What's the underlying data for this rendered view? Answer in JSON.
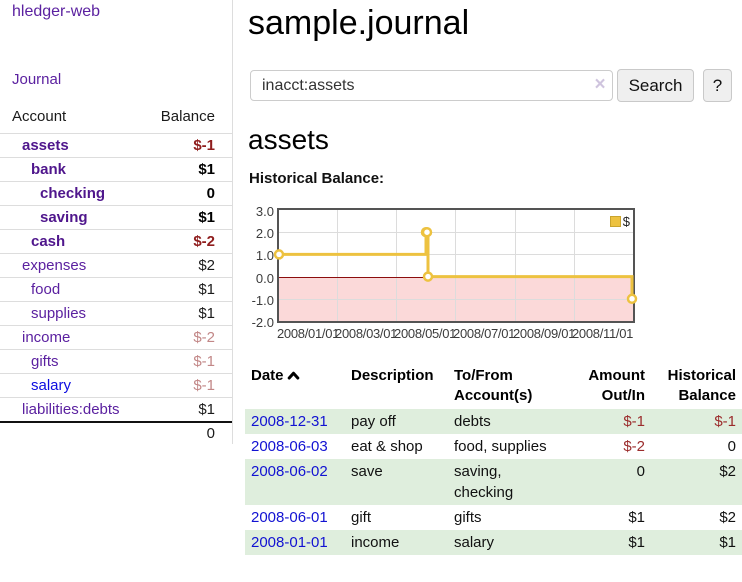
{
  "sidebar": {
    "brand": "hledger-web",
    "nav": {
      "journal": "Journal"
    },
    "accounts_header": {
      "account": "Account",
      "balance": "Balance"
    },
    "accounts": [
      {
        "name": "assets",
        "balance": "$-1"
      },
      {
        "name": "bank",
        "balance": "$1"
      },
      {
        "name": "checking",
        "balance": "0"
      },
      {
        "name": "saving",
        "balance": "$1"
      },
      {
        "name": "cash",
        "balance": "$-2"
      },
      {
        "name": "expenses",
        "balance": "$2"
      },
      {
        "name": "food",
        "balance": "$1"
      },
      {
        "name": "supplies",
        "balance": "$1"
      },
      {
        "name": "income",
        "balance": "$-2"
      },
      {
        "name": "gifts",
        "balance": "$-1"
      },
      {
        "name": "salary",
        "balance": "$-1"
      },
      {
        "name": "liabilities:debts",
        "balance": "$1"
      }
    ],
    "total": "0"
  },
  "header": {
    "title": "sample.journal"
  },
  "search": {
    "value": "inacct:assets",
    "clear_icon": "×",
    "button": "Search",
    "help_button": "?"
  },
  "account_page": {
    "heading": "assets",
    "chart_label": "Historical Balance:"
  },
  "chart_data": {
    "type": "line",
    "style": "step",
    "title": "Historical Balance",
    "series": [
      {
        "name": "$",
        "color": "#edc240",
        "points": [
          [
            "2008-01-01",
            1
          ],
          [
            "2008-06-01",
            2
          ],
          [
            "2008-06-02",
            2
          ],
          [
            "2008-06-03",
            0
          ],
          [
            "2008-12-31",
            -1
          ]
        ]
      }
    ],
    "x_domain": [
      "2008-01-01",
      "2009-01-01"
    ],
    "ylim": [
      -2,
      3
    ],
    "yticks": [
      "3.0",
      "2.0",
      "1.0",
      "0.0",
      "-1.0",
      "-2.0"
    ],
    "xticks": [
      "2008/01/01",
      "2008/03/01",
      "2008/05/01",
      "2008/07/01",
      "2008/09/01",
      "2008/11/01"
    ],
    "grid": true,
    "negative_region_color": "#fbd9d9",
    "zero_line_color": "#8c0d0d",
    "legend": {
      "label": "$",
      "position": "top-right"
    }
  },
  "register": {
    "columns": {
      "date": "Date",
      "description": "Description",
      "accounts": "To/From Account(s)",
      "amount": "Amount Out/In",
      "balance": "Historical Balance"
    },
    "rows": [
      {
        "date": "2008-12-31",
        "description": "pay off",
        "accounts": "debts",
        "amount": "$-1",
        "balance": "$-1"
      },
      {
        "date": "2008-06-03",
        "description": "eat & shop",
        "accounts": "food, supplies",
        "amount": "$-2",
        "balance": "0"
      },
      {
        "date": "2008-06-02",
        "description": "save",
        "accounts": "saving, checking",
        "amount": "0",
        "balance": "$2"
      },
      {
        "date": "2008-06-01",
        "description": "gift",
        "accounts": "gifts",
        "amount": "$1",
        "balance": "$2"
      },
      {
        "date": "2008-01-01",
        "description": "income",
        "accounts": "salary",
        "amount": "$1",
        "balance": "$1"
      }
    ]
  }
}
